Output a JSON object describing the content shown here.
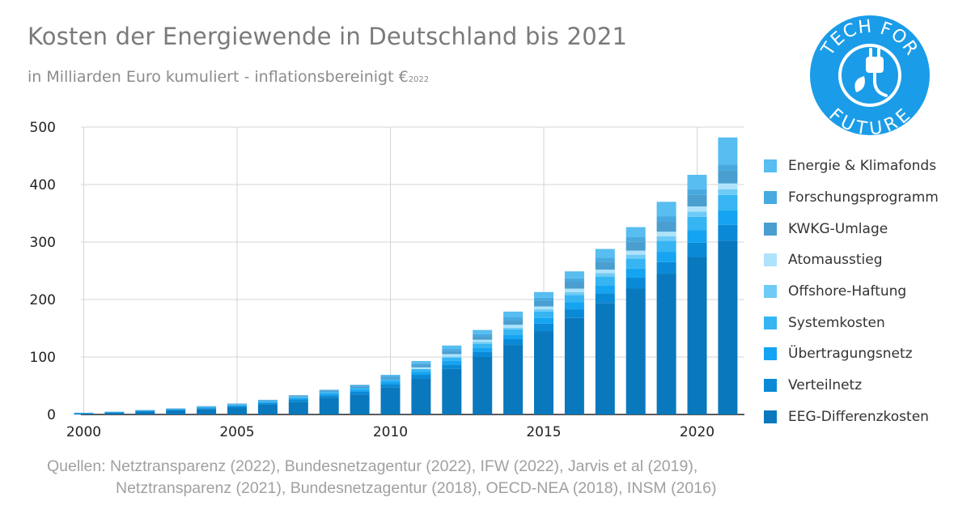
{
  "chart_data": {
    "type": "bar",
    "stacked": true,
    "title": "Kosten der Energiewende in Deutschland bis 2021",
    "subtitle": "in Milliarden Euro kumuliert - inflationsbereinigt €",
    "subtitle_suffix": "2022",
    "xlabel": "",
    "ylabel": "",
    "ylim": [
      0,
      500
    ],
    "yticks": [
      0,
      100,
      200,
      300,
      400,
      500
    ],
    "xticks": [
      "2000",
      "2005",
      "2010",
      "2015",
      "2020"
    ],
    "categories": [
      "2000",
      "2001",
      "2002",
      "2003",
      "2004",
      "2005",
      "2006",
      "2007",
      "2008",
      "2009",
      "2010",
      "2011",
      "2012",
      "2013",
      "2014",
      "2015",
      "2016",
      "2017",
      "2018",
      "2019",
      "2020",
      "2021"
    ],
    "grid": true,
    "legend_position": "right",
    "series": [
      {
        "name": "EEG-Differenzkosten",
        "color": "#0a78bd",
        "values": [
          2,
          3,
          5,
          7,
          9,
          12,
          17,
          22,
          29,
          35,
          47,
          62,
          79,
          100,
          121,
          145,
          168,
          194,
          219,
          245,
          274,
          302
        ]
      },
      {
        "name": "Verteilnetz",
        "color": "#0a8ad6",
        "values": [
          0.3,
          0.6,
          0.9,
          1.2,
          2,
          2.5,
          3,
          4,
          4.5,
          5,
          6,
          7,
          8,
          9,
          10,
          13,
          15,
          17,
          19,
          20,
          25,
          28
        ]
      },
      {
        "name": "Übertragungsnetz",
        "color": "#15a4f2",
        "values": [
          0.2,
          0.3,
          0.5,
          0.8,
          1,
          1.5,
          2,
          2.5,
          3,
          3.5,
          4,
          5,
          6,
          7,
          8,
          10,
          12,
          14,
          16,
          18,
          22,
          25
        ]
      },
      {
        "name": "Systemkosten",
        "color": "#36b5f2",
        "values": [
          0.3,
          0.3,
          0.5,
          0.5,
          1,
          1,
          1.5,
          2,
          2.5,
          3,
          4,
          5,
          6,
          7,
          9,
          11,
          13,
          15,
          17,
          19,
          23,
          27
        ]
      },
      {
        "name": "Offshore-Haftung",
        "color": "#6ecbf5",
        "values": [
          0,
          0,
          0,
          0,
          0,
          0,
          0,
          0,
          0,
          0,
          0,
          0,
          2,
          3,
          3,
          4,
          5,
          6,
          7,
          8,
          9,
          10
        ]
      },
      {
        "name": "Atomausstieg",
        "color": "#aee3fb",
        "values": [
          0,
          0,
          0,
          0,
          0,
          0,
          0,
          0,
          0,
          0,
          0,
          3,
          4,
          4,
          5,
          5,
          6,
          6,
          7,
          8,
          9,
          10
        ]
      },
      {
        "name": "KWKG-Umlage",
        "color": "#4a9fd0",
        "values": [
          0,
          0.3,
          0.4,
          0.5,
          0.8,
          1,
          1,
          1.5,
          2,
          2.5,
          3,
          4,
          5,
          6,
          8,
          10,
          12,
          14,
          16,
          18,
          20,
          22
        ]
      },
      {
        "name": "Forschungsprogramm",
        "color": "#48a9e0",
        "values": [
          0.2,
          0.2,
          0.4,
          0.5,
          0.7,
          1,
          1,
          1.5,
          2,
          2.5,
          3,
          3,
          4,
          4,
          5,
          5,
          6,
          7,
          8,
          9,
          10,
          11
        ]
      },
      {
        "name": "Energie & Klimafonds",
        "color": "#58bdf0",
        "values": [
          0,
          0,
          0,
          0,
          0,
          0,
          0,
          0,
          0,
          0,
          2,
          4,
          6,
          7,
          10,
          10,
          12,
          15,
          17,
          25,
          25,
          47
        ]
      }
    ]
  },
  "logo": {
    "text_top": "TECH FOR",
    "text_bottom": "FUTURE",
    "color": "#1a9ce8",
    "icon": "plug-leaf-icon"
  },
  "sources": {
    "line1": "Quellen: Netztransparenz (2022), Bundesnetzagentur (2022), IFW (2022), Jarvis et al (2019),",
    "line2": "Netztransparenz (2021), Bundesnetzagentur (2018), OECD-NEA (2018), INSM (2016)"
  }
}
